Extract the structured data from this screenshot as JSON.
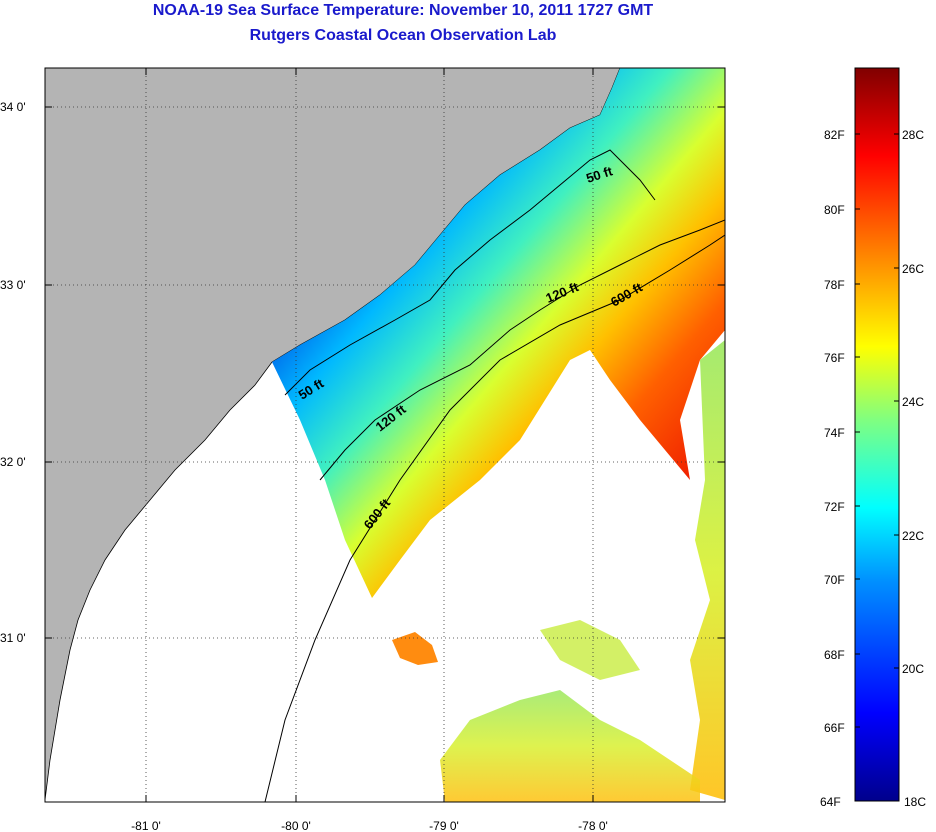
{
  "header": {
    "title": "NOAA-19 Sea Surface Temperature:  November 10, 2011 1727 GMT",
    "subtitle": "Rutgers Coastal Ocean Observation Lab"
  },
  "map": {
    "lon_ticks": [
      "-81 0'",
      "-80 0'",
      "-79 0'",
      "-78 0'"
    ],
    "lat_ticks": [
      "34 0'",
      "33 0'",
      "32 0'",
      "31 0'"
    ],
    "isobaths": [
      {
        "id": "50ft-north",
        "label": "50 ft"
      },
      {
        "id": "50ft-south",
        "label": "50 ft"
      },
      {
        "id": "120ft-north",
        "label": "120 ft"
      },
      {
        "id": "120ft-south",
        "label": "120 ft"
      },
      {
        "id": "600ft-north",
        "label": "600 ft"
      },
      {
        "id": "600ft-south",
        "label": "600 ft"
      }
    ],
    "colors": {
      "land": "#b4b4b4",
      "no_data": "#ffffff",
      "title": "#1a1acc"
    }
  },
  "colorbar": {
    "fahrenheit_labels": [
      "82F",
      "80F",
      "78F",
      "76F",
      "74F",
      "72F",
      "70F",
      "68F",
      "66F",
      "64F"
    ],
    "celsius_labels": [
      "28C",
      "26C",
      "24C",
      "22C",
      "20C",
      "18C"
    ],
    "range_c": [
      18,
      29.2
    ]
  }
}
